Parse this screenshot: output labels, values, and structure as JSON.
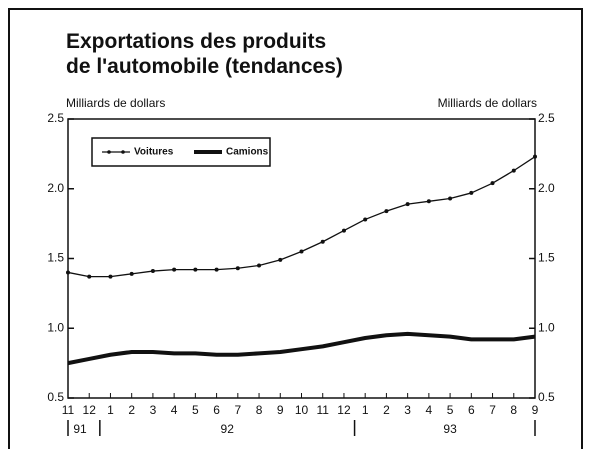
{
  "chart_data": {
    "type": "line",
    "title": [
      "Exportations des produits",
      "de l'automobile (tendances)"
    ],
    "y_label": "Milliards de dollars",
    "y2_label": "Milliards de dollars",
    "categories": [
      "11",
      "12",
      "1",
      "2",
      "3",
      "4",
      "5",
      "6",
      "7",
      "8",
      "9",
      "10",
      "11",
      "12",
      "1",
      "2",
      "3",
      "4",
      "5",
      "6",
      "7",
      "8",
      "9"
    ],
    "year_labels": [
      "91",
      "92",
      "93"
    ],
    "series": [
      {
        "name": "Voitures",
        "color": "#111111",
        "marker": true,
        "values": [
          1.4,
          1.37,
          1.37,
          1.39,
          1.41,
          1.42,
          1.42,
          1.42,
          1.43,
          1.45,
          1.49,
          1.55,
          1.62,
          1.7,
          1.78,
          1.84,
          1.89,
          1.91,
          1.93,
          1.97,
          2.04,
          2.13,
          2.23
        ]
      },
      {
        "name": "Camions",
        "color": "#111111",
        "marker": false,
        "values": [
          0.75,
          0.78,
          0.81,
          0.83,
          0.83,
          0.82,
          0.82,
          0.81,
          0.81,
          0.82,
          0.83,
          0.85,
          0.87,
          0.9,
          0.93,
          0.95,
          0.96,
          0.95,
          0.94,
          0.92,
          0.92,
          0.92,
          0.94
        ]
      }
    ],
    "ylim": [
      0.5,
      2.5
    ],
    "yticks": [
      0.5,
      {
        "value": 1,
        "label": "1.0"
      },
      1.5,
      {
        "value": 2,
        "label": "2.0"
      },
      2.5
    ],
    "y2lim": [
      0.5,
      2.5
    ],
    "y2ticks": [
      0.5,
      {
        "value": 1,
        "label": "1.0"
      },
      1.5,
      {
        "value": 2,
        "label": "2.0"
      },
      2.5
    ],
    "legend": "top-left"
  }
}
